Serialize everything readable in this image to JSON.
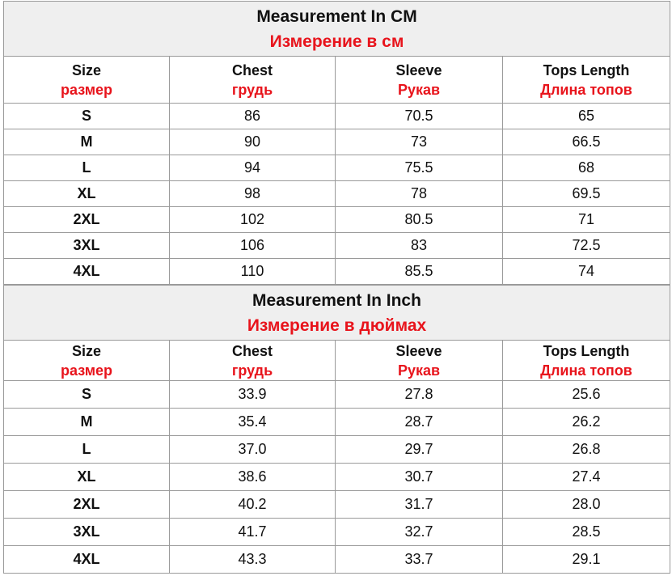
{
  "sections": [
    {
      "title": "Measurement In CM",
      "subtitle": "Измерение в см",
      "header": [
        {
          "en": "Size",
          "ru": "размер"
        },
        {
          "en": "Chest",
          "ru": "грудь"
        },
        {
          "en": "Sleeve",
          "ru": "Рукав"
        },
        {
          "en": "Tops Length",
          "ru": "Длина топов"
        }
      ],
      "rows": [
        [
          "S",
          "86",
          "70.5",
          "65"
        ],
        [
          "M",
          "90",
          "73",
          "66.5"
        ],
        [
          "L",
          "94",
          "75.5",
          "68"
        ],
        [
          "XL",
          "98",
          "78",
          "69.5"
        ],
        [
          "2XL",
          "102",
          "80.5",
          "71"
        ],
        [
          "3XL",
          "106",
          "83",
          "72.5"
        ],
        [
          "4XL",
          "110",
          "85.5",
          "74"
        ]
      ]
    },
    {
      "title": "Measurement In Inch",
      "subtitle": "Измерение в дюймах",
      "header": [
        {
          "en": "Size",
          "ru": "размер"
        },
        {
          "en": "Chest",
          "ru": "грудь"
        },
        {
          "en": "Sleeve",
          "ru": "Рукав"
        },
        {
          "en": "Tops Length",
          "ru": "Длина топов"
        }
      ],
      "rows": [
        [
          "S",
          "33.9",
          "27.8",
          "25.6"
        ],
        [
          "M",
          "35.4",
          "28.7",
          "26.2"
        ],
        [
          "L",
          "37.0",
          "29.7",
          "26.8"
        ],
        [
          "XL",
          "38.6",
          "30.7",
          "27.4"
        ],
        [
          "2XL",
          "40.2",
          "31.7",
          "28.0"
        ],
        [
          "3XL",
          "41.7",
          "32.7",
          "28.5"
        ],
        [
          "4XL",
          "43.3",
          "33.7",
          "29.1"
        ]
      ]
    }
  ]
}
